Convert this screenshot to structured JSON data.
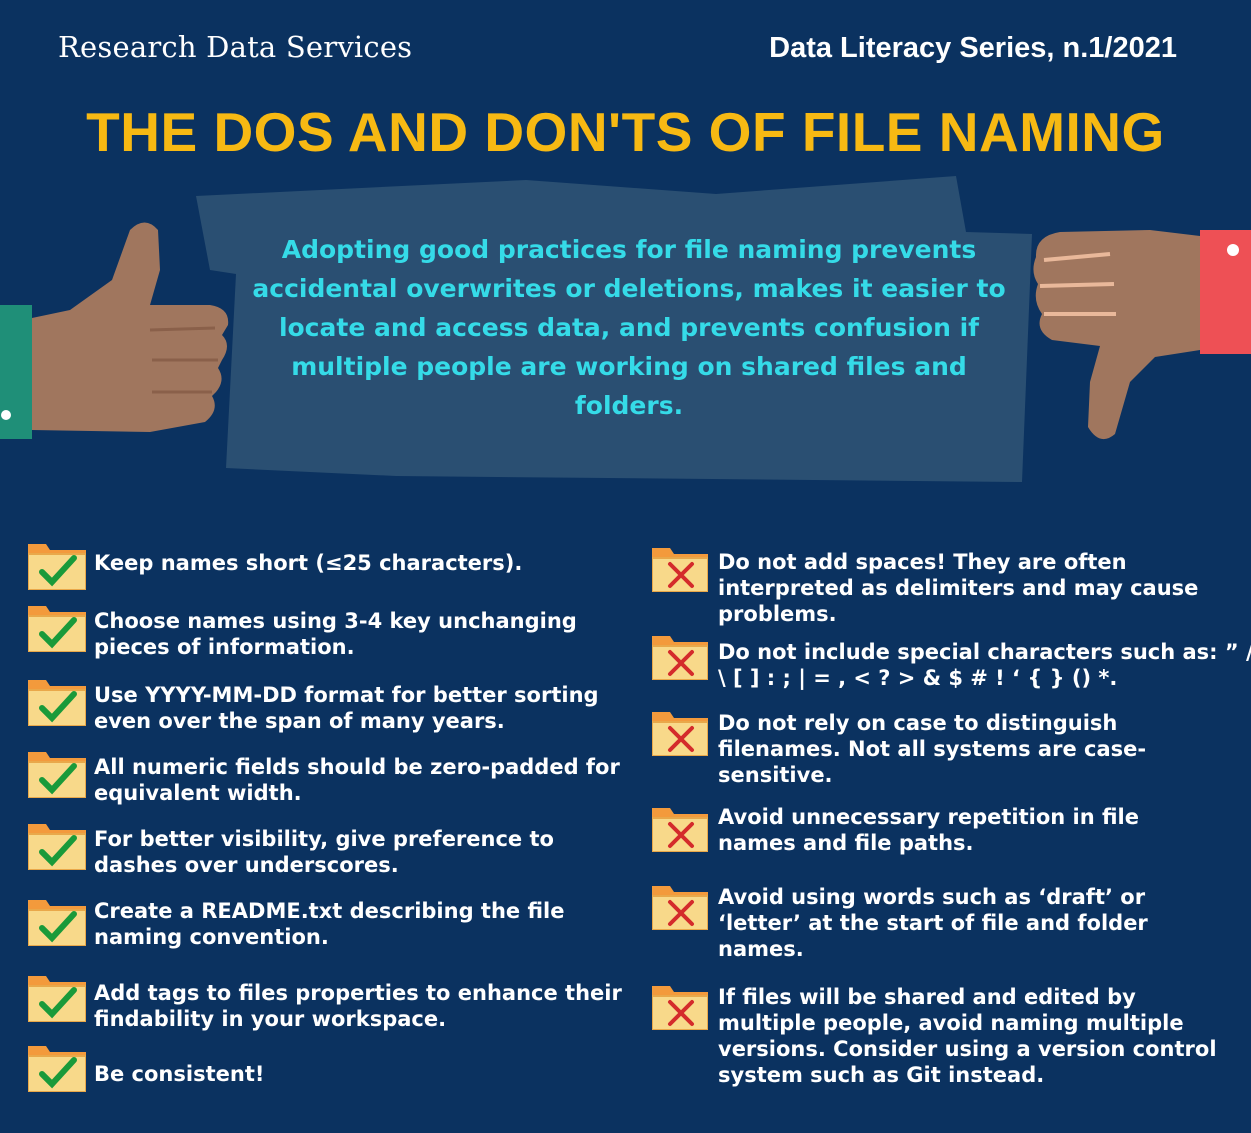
{
  "header": {
    "org": "Research Data Services",
    "series": "Data Literacy Series, n.1/2021",
    "title": "THE DOS AND DON'TS OF FILE NAMING"
  },
  "intro": "Adopting good practices for file naming prevents accidental overwrites or deletions, makes it easier to locate and access data, and prevents confusion if multiple people are working on shared files and folders.",
  "colors": {
    "background": "#0b3260",
    "title": "#f7b913",
    "intro_text": "#35dbe8",
    "banner": "#2a4f72",
    "folder": "#f8d98a",
    "folder_tab": "#f39a3c",
    "check": "#1a9a3a",
    "cross": "#d42b2b"
  },
  "icons": {
    "do": "folder-check-icon",
    "dont": "folder-cross-icon",
    "left_hand": "thumbs-up-icon",
    "right_hand": "thumbs-down-icon"
  },
  "dos": [
    "Keep names short (≤25 characters).",
    "Choose names using 3-4 key unchanging pieces of information.",
    "Use YYYY-MM-DD format for better sorting even over the span of many years.",
    "All numeric fields should be zero-padded for equivalent width.",
    "For better visibility, give preference to dashes over underscores.",
    "Create a README.txt describing the file naming convention.",
    "Add tags to files properties to enhance their findability in your workspace.",
    "Be consistent!"
  ],
  "donts": [
    "Do not add spaces! They are often interpreted as delimiters and may cause problems.",
    "Do not include special characters such as: ” / \\ [ ] : ; | = , < ? > & $ # ! ‘ { } () *.",
    "Do not rely on case to distinguish filenames. Not all systems are case-sensitive.",
    "Avoid unnecessary repetition in file names and file paths.",
    "Avoid using words such as ‘draft’ or ‘letter’ at the start of file and folder names.",
    "If files will be shared and edited by multiple people, avoid naming multiple versions. Consider using a version control system such as Git instead."
  ]
}
